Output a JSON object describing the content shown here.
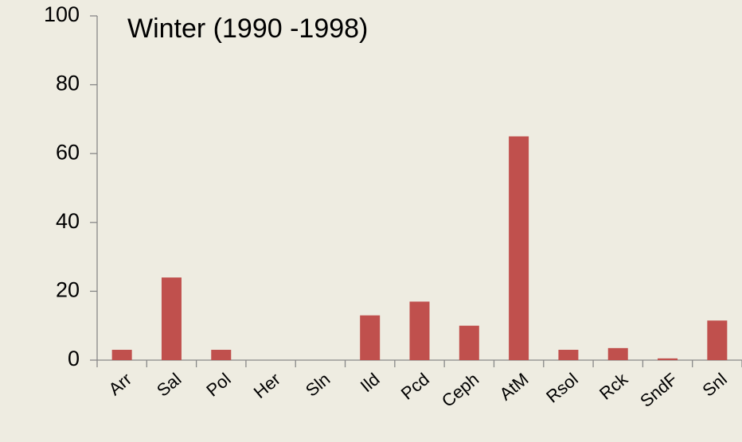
{
  "chart_data": {
    "type": "bar",
    "title": "Winter (1990 -1998)",
    "categories": [
      "Arr",
      "Sal",
      "Pol",
      "Her",
      "Sln",
      "Ild",
      "Pcd",
      "Ceph",
      "AtM",
      "Rsol",
      "Rck",
      "SndF",
      "Snl"
    ],
    "values": [
      3,
      24,
      3,
      0,
      0,
      13,
      17,
      10,
      65,
      3,
      3.5,
      0.5,
      11.5
    ],
    "color": "#c0504d",
    "ylim": [
      0,
      100
    ],
    "yticks": [
      0,
      20,
      40,
      60,
      80,
      100
    ],
    "grid": false
  }
}
